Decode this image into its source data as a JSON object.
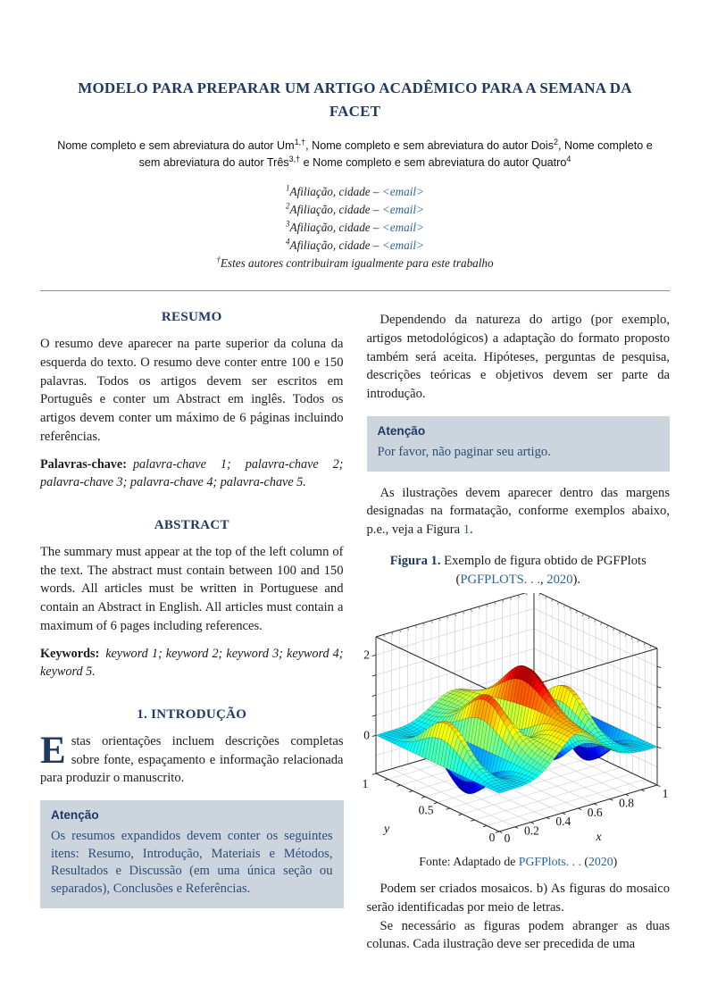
{
  "colors": {
    "navy": "#1e3a64",
    "link_blue": "#2b6598",
    "callout_bg": "#ccd5dd",
    "callout_text": "#2d4d77"
  },
  "header": {
    "title": "MODELO PARA PREPARAR UM ARTIGO ACADÊMICO PARA A SEMANA DA FACET",
    "authors": [
      {
        "text": "Nome completo e sem abreviatura do autor Um",
        "sup": "1,†",
        "after": ", "
      },
      {
        "text": "Nome completo e sem abreviatura do autor Dois",
        "sup": "2",
        "after": ", Nome completo e sem abreviatura do autor Três",
        "sup2": "3,†",
        "after2": " e "
      },
      {
        "text": "Nome completo e sem abreviatura do autor Quatro",
        "sup": "4",
        "after": ""
      }
    ],
    "affiliations": [
      {
        "sup": "1",
        "text": "Afiliação, cidade – ",
        "email": "<email>"
      },
      {
        "sup": "2",
        "text": "Afiliação, cidade – ",
        "email": "<email>"
      },
      {
        "sup": "3",
        "text": "Afiliação, cidade – ",
        "email": "<email>"
      },
      {
        "sup": "4",
        "text": "Afiliação, cidade – ",
        "email": "<email>"
      }
    ],
    "thanks": {
      "sup": "†",
      "text": "Estes autores contribuiram igualmente para este trabalho"
    }
  },
  "left_column": {
    "resumo_heading": "RESUMO",
    "resumo_body": "O resumo deve aparecer na parte superior da coluna da esquerda do texto. O resumo deve conter entre 100 e 150 palavras. Todos os artigos devem ser escritos em Português e conter um Abstract em inglês. Todos os artigos devem conter um máximo de 6 páginas incluindo referências.",
    "palavras_label": "Palavras-chave:",
    "palavras_text": "palavra-chave 1; palavra-chave 2; palavra-chave 3; palavra-chave 4; palavra-chave 5.",
    "abstract_heading": "ABSTRACT",
    "abstract_body": "The summary must appear at the top of the left column of the text. The abstract must contain between 100 and 150 words. All articles must be written in Portuguese and contain an Abstract in English. All articles must contain a maximum of 6 pages including references.",
    "keywords_label": "Keywords:",
    "keywords_text": "keyword 1; keyword 2; keyword 3; keyword 4; keyword 5.",
    "intro_heading": "1.  INTRODUÇÃO",
    "intro_dropcap": "E",
    "intro_body": "stas orientações incluem descrições completas sobre fonte, espaçamento e informação relacionada para produzir o manuscrito.",
    "callout_title": "Atenção",
    "callout_body": "Os resumos expandidos devem conter os seguintes itens: Resumo, Introdução, Materiais e Métodos, Resultados e Discussão (em uma única seção ou separados), Conclusões e Referências."
  },
  "right_column": {
    "p1": "Dependendo da natureza do artigo (por exemplo, artigos metodológicos) a adaptação do formato proposto também será aceita. Hipóteses, perguntas de pesquisa, descrições teóricas e objetivos devem ser parte da introdução.",
    "callout_title": "Atenção",
    "callout_body": "Por favor, não paginar seu artigo.",
    "p2_text": "As ilustrações devem aparecer dentro das margens designadas na formatação, conforme exemplos abaixo, p.e., veja a Figura ",
    "p2_link": "1",
    "p2_after": ".",
    "caption_label": "Figura 1.",
    "caption_text": " Exemplo de figura obtido de PGFPlots (",
    "caption_link1": "PGFPLOTS. . .",
    "caption_sep": ", ",
    "caption_link2": "2020",
    "caption_after": ").",
    "fonte_text": "Fonte: Adaptado de ",
    "fonte_link1": "PGFPlots. . .",
    "fonte_sep": " (",
    "fonte_link2": "2020",
    "fonte_after": ")",
    "p3": "Podem ser criados mosaicos.  b) As figuras do mosaico serão identificadas por meio de letras.",
    "p4": "Se necessário as figuras podem abranger as duas colunas. Cada ilustração deve ser precedida de uma"
  },
  "chart_data": {
    "type": "surface3d",
    "function": "z = sin(8*pi*x)*exp(-20*(y-0.5)^2) + exp(-30*(x-0.5)^2 - (y-0.25)^2 - (x-0.5)*(y-0.25))",
    "domain": {
      "x": [
        0,
        1
      ],
      "y": [
        0,
        1
      ]
    },
    "samples": 40,
    "x_ticks": [
      0,
      0.2,
      0.4,
      0.6,
      0.8,
      1
    ],
    "y_ticks": [
      0,
      0.5,
      1
    ],
    "z_tick_labels": [
      0,
      2
    ],
    "xlabel": "x",
    "ylabel": "y",
    "z_box_range": [
      -0.95,
      2.45
    ],
    "colormap": "jet",
    "grid": "walls and floor, light gray",
    "view": {
      "azimuth": 25,
      "elevation": 30
    }
  }
}
